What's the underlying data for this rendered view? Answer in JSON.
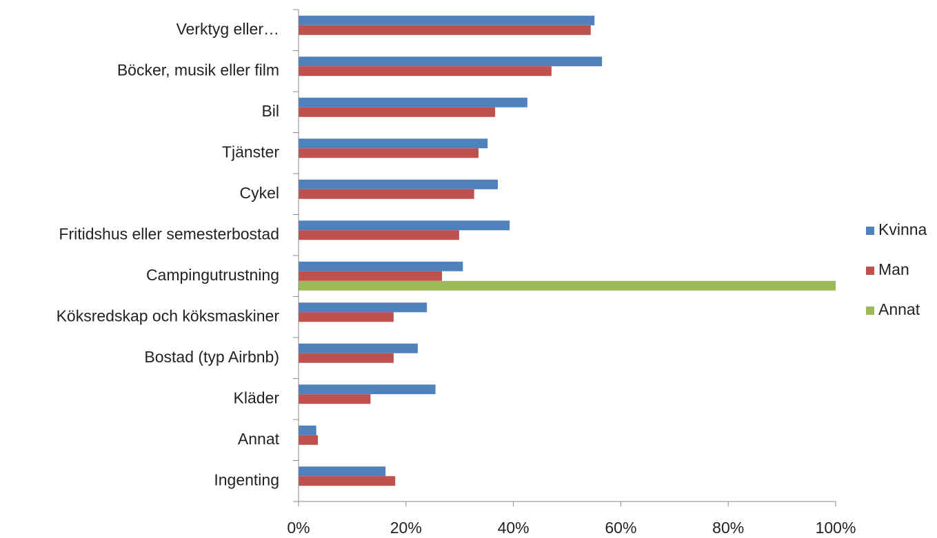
{
  "chart_data": {
    "type": "hbar",
    "categories": [
      "Verktyg eller…",
      "Böcker, musik eller film",
      "Bil",
      "Tjänster",
      "Cykel",
      "Fritidshus eller semesterbostad",
      "Campingutrustning",
      "Köksredskap och köksmaskiner",
      "Bostad (typ Airbnb)",
      "Kläder",
      "Annat",
      "Ingenting"
    ],
    "series": [
      {
        "name": "Kvinna",
        "color": "#4f81bd",
        "values": [
          55.1,
          56.5,
          42.6,
          35.2,
          37.1,
          39.3,
          30.6,
          23.9,
          22.2,
          25.5,
          3.3,
          16.2
        ]
      },
      {
        "name": "Man",
        "color": "#c0504d",
        "values": [
          54.4,
          47.1,
          36.6,
          33.5,
          32.7,
          29.9,
          26.7,
          17.7,
          17.7,
          13.4,
          3.6,
          18.0
        ]
      },
      {
        "name": "Annat",
        "color": "#9bbb59",
        "values": [
          null,
          null,
          null,
          null,
          null,
          null,
          100,
          null,
          null,
          null,
          null,
          null
        ]
      }
    ],
    "xlim": [
      0,
      100
    ],
    "xticks": [
      {
        "value": 0,
        "label": "0%"
      },
      {
        "value": 20,
        "label": "20%"
      },
      {
        "value": 40,
        "label": "40%"
      },
      {
        "value": 60,
        "label": "60%"
      },
      {
        "value": 80,
        "label": "80%"
      },
      {
        "value": 100,
        "label": "100%"
      }
    ],
    "legend": "right"
  }
}
